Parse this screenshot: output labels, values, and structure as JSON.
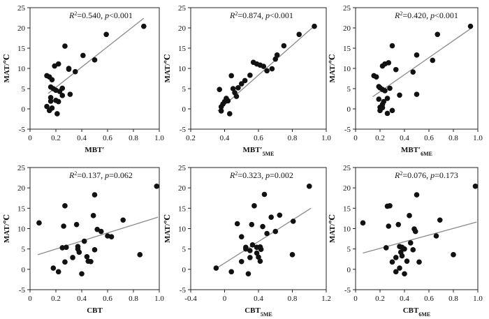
{
  "colors": {
    "points": "#111111",
    "fit_line": "#8a8a8a",
    "axis": "#222222",
    "background": "#ffffff"
  },
  "chart_data": [
    {
      "type": "scatter",
      "id": "mbt",
      "title": "",
      "xlabel": "MBT′",
      "xlabel_sub": "",
      "ylabel": "MAT/℃",
      "xlim": [
        0,
        1.0
      ],
      "ylim": [
        -5,
        25
      ],
      "xticks": [
        "0",
        "0.2",
        "0.4",
        "0.6",
        "0.8",
        "1.0"
      ],
      "yticks": [
        "-5",
        "0",
        "5",
        "10",
        "15",
        "20",
        "25"
      ],
      "xtick_values": [
        0,
        0.2,
        0.4,
        0.6,
        0.8,
        1.0
      ],
      "ytick_values": [
        -5,
        0,
        5,
        10,
        15,
        20,
        25
      ],
      "annotation": {
        "r2": "R",
        "r2_eq": "=0.540, ",
        "p": "p",
        "p_eq": "<0.001"
      },
      "fit": {
        "x": [
          0.14,
          0.88
        ],
        "y": [
          3.8,
          22.4
        ]
      },
      "x": [
        0.13,
        0.15,
        0.17,
        0.19,
        0.22,
        0.27,
        0.25,
        0.3,
        0.35,
        0.16,
        0.18,
        0.2,
        0.23,
        0.16,
        0.2,
        0.25,
        0.31,
        0.17,
        0.21,
        0.15,
        0.13,
        0.16,
        0.41,
        0.5,
        0.59,
        0.88,
        0.3,
        0.22
      ],
      "y": [
        8.2,
        7.9,
        7.2,
        10.6,
        11.1,
        15.5,
        5.1,
        9.8,
        9.2,
        5.4,
        5.0,
        4.6,
        4.3,
        2.8,
        2.1,
        3.3,
        3.6,
        0.2,
        -1.2,
        -0.4,
        0.6,
        1.9,
        13.2,
        12.1,
        18.4,
        20.4,
        10.0,
        1.8
      ]
    },
    {
      "type": "scatter",
      "id": "mbt5me",
      "title": "",
      "xlabel": "MBT′",
      "xlabel_sub": "5ME",
      "ylabel": "MAT/℃",
      "xlim": [
        0.2,
        1.0
      ],
      "ylim": [
        -5,
        25
      ],
      "xticks": [
        "0.2",
        "0.4",
        "0.6",
        "0.8",
        "1.0"
      ],
      "yticks": [
        "-5",
        "0",
        "5",
        "10",
        "15",
        "20",
        "25"
      ],
      "xtick_values": [
        0.2,
        0.4,
        0.6,
        0.8,
        1.0
      ],
      "ytick_values": [
        -5,
        0,
        5,
        10,
        15,
        20,
        25
      ],
      "annotation": {
        "r2": "R",
        "r2_eq": "=0.874, ",
        "p": "p",
        "p_eq": "<0.001"
      },
      "fit": {
        "x": [
          0.36,
          0.93
        ],
        "y": [
          -0.5,
          20.5
        ]
      },
      "x": [
        0.37,
        0.38,
        0.39,
        0.4,
        0.41,
        0.42,
        0.43,
        0.44,
        0.45,
        0.46,
        0.47,
        0.48,
        0.5,
        0.52,
        0.55,
        0.57,
        0.59,
        0.61,
        0.63,
        0.65,
        0.68,
        0.7,
        0.71,
        0.75,
        0.84,
        0.93,
        0.38,
        0.41
      ],
      "y": [
        4.8,
        -0.5,
        1.2,
        1.8,
        2.6,
        2.0,
        -1.2,
        8.2,
        5.0,
        4.0,
        3.1,
        5.2,
        6.2,
        7.0,
        8.3,
        11.5,
        11.1,
        10.8,
        10.5,
        9.4,
        9.9,
        12.3,
        13.3,
        15.6,
        18.4,
        20.4,
        0.5,
        2.4
      ]
    },
    {
      "type": "scatter",
      "id": "mbt6me",
      "title": "",
      "xlabel": "MBT′",
      "xlabel_sub": "6ME",
      "ylabel": "MAT/℃",
      "xlim": [
        0,
        1.0
      ],
      "ylim": [
        -5,
        25
      ],
      "xticks": [
        "0",
        "0.2",
        "0.4",
        "0.6",
        "0.8",
        "1.0"
      ],
      "yticks": [
        "-5",
        "0",
        "5",
        "10",
        "15",
        "20",
        "25"
      ],
      "xtick_values": [
        0,
        0.2,
        0.4,
        0.6,
        0.8,
        1.0
      ],
      "ytick_values": [
        -5,
        0,
        5,
        10,
        15,
        20,
        25
      ],
      "annotation": {
        "r2": "R",
        "r2_eq": "=0.420, ",
        "p": "p",
        "p_eq": "<0.001"
      },
      "fit": {
        "x": [
          0.14,
          0.94
        ],
        "y": [
          3.0,
          19.8
        ]
      },
      "x": [
        0.15,
        0.17,
        0.19,
        0.22,
        0.24,
        0.27,
        0.28,
        0.3,
        0.33,
        0.36,
        0.2,
        0.22,
        0.24,
        0.26,
        0.19,
        0.22,
        0.26,
        0.3,
        0.2,
        0.23,
        0.2,
        0.22,
        0.47,
        0.5,
        0.63,
        0.67,
        0.94,
        0.5
      ],
      "y": [
        8.2,
        7.9,
        5.5,
        10.6,
        11.1,
        11.4,
        5.1,
        15.6,
        9.7,
        3.4,
        5.2,
        4.8,
        4.5,
        2.6,
        2.4,
        1.1,
        -1.1,
        -0.4,
        0.4,
        1.8,
        -0.4,
        0.3,
        9.1,
        13.3,
        12.0,
        18.4,
        20.4,
        3.6
      ]
    },
    {
      "type": "scatter",
      "id": "cbt",
      "title": "",
      "xlabel": "CBT",
      "xlabel_sub": "",
      "ylabel": "MAT/℃",
      "xlim": [
        0,
        1.0
      ],
      "ylim": [
        -5,
        25
      ],
      "xticks": [
        "0",
        "0.2",
        "0.4",
        "0.6",
        "0.8",
        "1.0"
      ],
      "yticks": [
        "-5",
        "0",
        "5",
        "10",
        "15",
        "20",
        "25"
      ],
      "xtick_values": [
        0,
        0.2,
        0.4,
        0.6,
        0.8,
        1.0
      ],
      "ytick_values": [
        -5,
        0,
        5,
        10,
        15,
        20,
        25
      ],
      "annotation": {
        "r2": "R",
        "r2_eq": "=0.137, ",
        "p": "p",
        "p_eq": "=0.062"
      },
      "fit": {
        "x": [
          0.06,
          0.99
        ],
        "y": [
          3.6,
          12.8
        ]
      },
      "x": [
        0.07,
        0.18,
        0.22,
        0.26,
        0.27,
        0.28,
        0.33,
        0.36,
        0.37,
        0.38,
        0.42,
        0.44,
        0.47,
        0.49,
        0.5,
        0.52,
        0.55,
        0.6,
        0.63,
        0.72,
        0.85,
        0.98,
        0.37,
        0.4,
        0.45,
        0.5,
        0.25,
        0.27
      ],
      "y": [
        11.4,
        0.3,
        -0.6,
        10.6,
        15.6,
        5.4,
        2.9,
        11.0,
        5.6,
        4.2,
        6.9,
        3.1,
        1.9,
        13.2,
        18.3,
        9.8,
        9.3,
        8.2,
        8.0,
        12.1,
        3.6,
        20.4,
        5.0,
        -1.1,
        2.0,
        4.8,
        5.3,
        1.8
      ]
    },
    {
      "type": "scatter",
      "id": "cbt5me",
      "title": "",
      "xlabel": "CBT",
      "xlabel_sub": "5ME",
      "ylabel": "MAT/℃",
      "xlim": [
        -0.4,
        1.2
      ],
      "ylim": [
        -5,
        25
      ],
      "xticks": [
        "-0.4",
        "0",
        "0.4",
        "0.8",
        "1.2"
      ],
      "yticks": [
        "-5",
        "0",
        "5",
        "10",
        "15",
        "20",
        "25"
      ],
      "xtick_values": [
        -0.4,
        0,
        0.4,
        0.8,
        1.2
      ],
      "ytick_values": [
        -5,
        0,
        5,
        10,
        15,
        20,
        25
      ],
      "annotation": {
        "r2": "R",
        "r2_eq": "=0.323, ",
        "p": "p",
        "p_eq": "=0.002"
      },
      "fit": {
        "x": [
          -0.1,
          1.02
        ],
        "y": [
          0.2,
          15.0
        ]
      },
      "x": [
        -0.1,
        0.08,
        0.15,
        0.2,
        0.25,
        0.28,
        0.3,
        0.3,
        0.32,
        0.35,
        0.38,
        0.4,
        0.42,
        0.43,
        0.45,
        0.47,
        0.5,
        0.55,
        0.6,
        0.65,
        0.8,
        0.81,
        1.0,
        0.2,
        0.25,
        0.33,
        0.38,
        0.42
      ],
      "y": [
        0.3,
        -0.6,
        11.2,
        1.9,
        5.4,
        -1.1,
        2.9,
        4.6,
        11.0,
        15.6,
        5.4,
        3.0,
        2.0,
        4.9,
        10.5,
        18.4,
        8.8,
        12.8,
        9.3,
        13.3,
        3.6,
        11.8,
        20.4,
        8.0,
        5.0,
        6.0,
        4.0,
        5.5
      ]
    },
    {
      "type": "scatter",
      "id": "cbt6me",
      "title": "",
      "xlabel": "CBT",
      "xlabel_sub": "6ME",
      "ylabel": "MAT/℃",
      "xlim": [
        0,
        1.0
      ],
      "ylim": [
        -5,
        25
      ],
      "xticks": [
        "0",
        "0.2",
        "0.4",
        "0.6",
        "0.8",
        "1.0"
      ],
      "yticks": [
        "-5",
        "0",
        "5",
        "10",
        "15",
        "20",
        "25"
      ],
      "xtick_values": [
        0,
        0.2,
        0.4,
        0.6,
        0.8,
        1.0
      ],
      "ytick_values": [
        -5,
        0,
        5,
        10,
        15,
        20,
        25
      ],
      "annotation": {
        "r2": "R",
        "r2_eq": "=0.076, ",
        "p": "p",
        "p_eq": "=0.173"
      },
      "fit": {
        "x": [
          0.06,
          0.99
        ],
        "y": [
          4.0,
          11.6
        ]
      },
      "x": [
        0.06,
        0.25,
        0.27,
        0.28,
        0.3,
        0.33,
        0.35,
        0.36,
        0.37,
        0.38,
        0.4,
        0.42,
        0.44,
        0.47,
        0.48,
        0.49,
        0.5,
        0.52,
        0.66,
        0.69,
        0.8,
        0.98,
        0.33,
        0.36,
        0.4,
        0.45,
        0.26,
        0.38
      ],
      "y": [
        11.4,
        5.3,
        10.6,
        15.6,
        1.8,
        2.9,
        11.0,
        5.6,
        4.2,
        5.4,
        -1.1,
        2.0,
        13.2,
        4.8,
        9.9,
        9.3,
        18.3,
        1.8,
        8.2,
        12.1,
        3.6,
        20.4,
        -0.6,
        0.3,
        5.0,
        6.5,
        15.5,
        3.3
      ]
    }
  ]
}
